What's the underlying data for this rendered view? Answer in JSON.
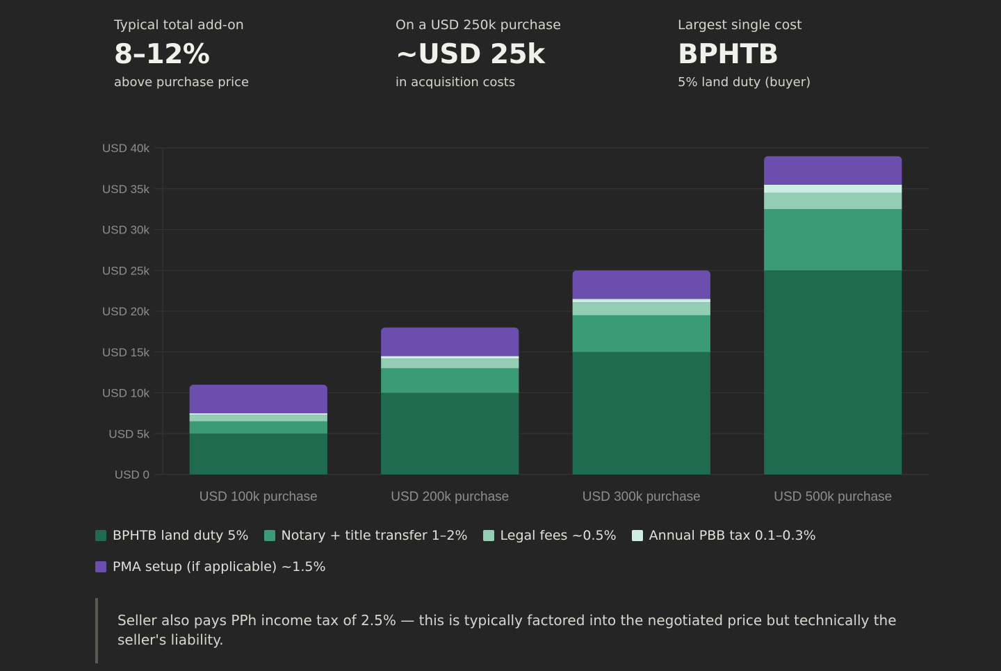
{
  "stats": [
    {
      "label": "Typical total add-on",
      "value": "8–12%",
      "sub": "above purchase price"
    },
    {
      "label": "On a USD 250k purchase",
      "value": "~USD 25k",
      "sub": "in acquisition costs"
    },
    {
      "label": "Largest single cost",
      "value": "BPHTB",
      "sub": "5% land duty (buyer)"
    }
  ],
  "chart_data": {
    "type": "bar",
    "stacked": true,
    "categories": [
      "USD 100k purchase",
      "USD 200k purchase",
      "USD 300k purchase",
      "USD 500k purchase"
    ],
    "y_ticks": [
      "USD 0",
      "USD 5k",
      "USD 10k",
      "USD 15k",
      "USD 20k",
      "USD 25k",
      "USD 30k",
      "USD 35k",
      "USD 40k"
    ],
    "ylim": [
      0,
      40000
    ],
    "grid": true,
    "series": [
      {
        "name": "BPHTB land duty 5%",
        "color": "#1f6b4f",
        "values": [
          5000,
          10000,
          15000,
          25000
        ]
      },
      {
        "name": "Notary + title transfer 1–2%",
        "color": "#3b9b77",
        "values": [
          1500,
          3000,
          4500,
          7500
        ]
      },
      {
        "name": "Legal fees ~0.5%",
        "color": "#92cdb4",
        "values": [
          800,
          1200,
          1600,
          2000
        ]
      },
      {
        "name": "Annual PBB tax 0.1–0.3%",
        "color": "#cdeee2",
        "values": [
          200,
          300,
          400,
          1000
        ]
      },
      {
        "name": "PMA setup (if applicable) ~1.5%",
        "color": "#6b4ead",
        "values": [
          3500,
          3500,
          3500,
          3500
        ]
      }
    ]
  },
  "note": "Seller also pays PPh income tax of 2.5% — this is typically factored into the negotiated price but technically the seller's liability."
}
